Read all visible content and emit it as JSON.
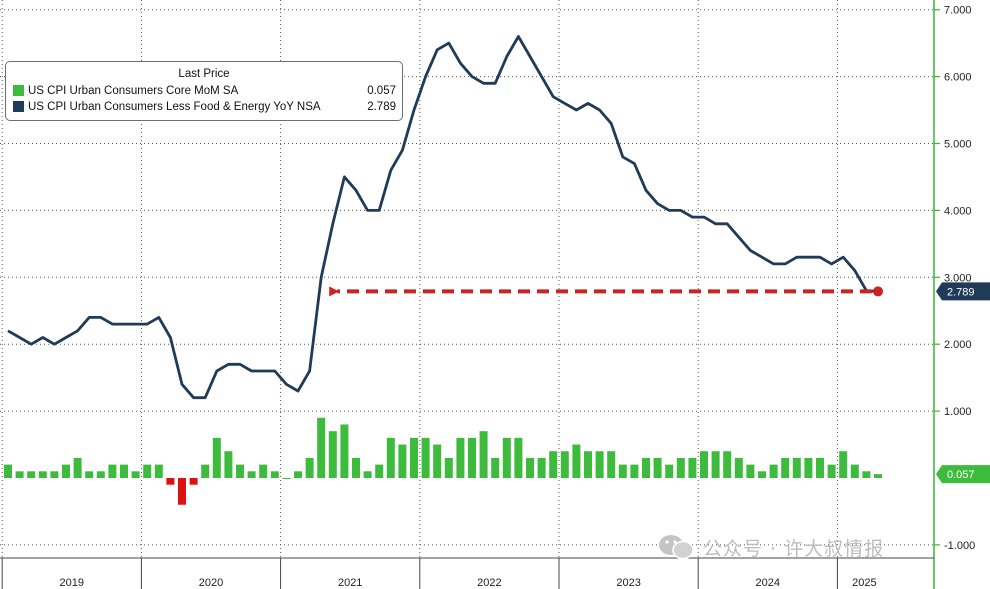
{
  "colors": {
    "core_mom": "#3dbb3d",
    "core_yoy": "#1f3b57",
    "arrow": "#cc2222",
    "grid_axis": "#35b935",
    "negative_bar": "#dd1111"
  },
  "legend": {
    "title": "Last Price",
    "items": [
      {
        "name": "US CPI Urban Consumers Core MoM SA",
        "value": "0.057",
        "color": "#3dbb3d"
      },
      {
        "name": "US CPI Urban Consumers Less Food & Energy YoY NSA",
        "value": "2.789",
        "color": "#1f3b57"
      }
    ]
  },
  "chart_data": {
    "type": "line",
    "xlabel": "",
    "ylabel": "",
    "ylim": [
      -1.0,
      7.0
    ],
    "y_ticks": [
      "-1.000",
      "1.000",
      "2.000",
      "3.000",
      "4.000",
      "5.000",
      "6.000",
      "7.000"
    ],
    "x_labels": [
      "2019",
      "2020",
      "2021",
      "2022",
      "2023",
      "2024",
      "2025"
    ],
    "grid": true,
    "legend_position": "top-left",
    "months": [
      "2019-01",
      "2019-02",
      "2019-03",
      "2019-04",
      "2019-05",
      "2019-06",
      "2019-07",
      "2019-08",
      "2019-09",
      "2019-10",
      "2019-11",
      "2019-12",
      "2020-01",
      "2020-02",
      "2020-03",
      "2020-04",
      "2020-05",
      "2020-06",
      "2020-07",
      "2020-08",
      "2020-09",
      "2020-10",
      "2020-11",
      "2020-12",
      "2021-01",
      "2021-02",
      "2021-03",
      "2021-04",
      "2021-05",
      "2021-06",
      "2021-07",
      "2021-08",
      "2021-09",
      "2021-10",
      "2021-11",
      "2021-12",
      "2022-01",
      "2022-02",
      "2022-03",
      "2022-04",
      "2022-05",
      "2022-06",
      "2022-07",
      "2022-08",
      "2022-09",
      "2022-10",
      "2022-11",
      "2022-12",
      "2023-01",
      "2023-02",
      "2023-03",
      "2023-04",
      "2023-05",
      "2023-06",
      "2023-07",
      "2023-08",
      "2023-09",
      "2023-10",
      "2023-11",
      "2023-12",
      "2024-01",
      "2024-02",
      "2024-03",
      "2024-04",
      "2024-05",
      "2024-06",
      "2024-07",
      "2024-08",
      "2024-09",
      "2024-10",
      "2024-11",
      "2024-12",
      "2025-01",
      "2025-02",
      "2025-03",
      "2025-04"
    ],
    "series": [
      {
        "name": "US CPI Urban Consumers Less Food & Energy YoY NSA",
        "values": [
          2.2,
          2.1,
          2.0,
          2.1,
          2.0,
          2.1,
          2.2,
          2.4,
          2.4,
          2.3,
          2.3,
          2.3,
          2.3,
          2.4,
          2.1,
          1.4,
          1.2,
          1.2,
          1.6,
          1.7,
          1.7,
          1.6,
          1.6,
          1.6,
          1.4,
          1.3,
          1.6,
          3.0,
          3.8,
          4.5,
          4.3,
          4.0,
          4.0,
          4.6,
          4.9,
          5.5,
          6.0,
          6.4,
          6.5,
          6.2,
          6.0,
          5.9,
          5.9,
          6.3,
          6.6,
          6.3,
          6.0,
          5.7,
          5.6,
          5.5,
          5.6,
          5.5,
          5.3,
          4.8,
          4.7,
          4.3,
          4.1,
          4.0,
          4.0,
          3.9,
          3.9,
          3.8,
          3.8,
          3.6,
          3.4,
          3.3,
          3.2,
          3.2,
          3.3,
          3.3,
          3.3,
          3.2,
          3.3,
          3.1,
          2.8,
          2.789
        ]
      },
      {
        "name": "US CPI Urban Consumers Core MoM SA",
        "values": [
          0.2,
          0.1,
          0.1,
          0.1,
          0.1,
          0.2,
          0.3,
          0.1,
          0.1,
          0.2,
          0.2,
          0.1,
          0.2,
          0.2,
          -0.1,
          -0.4,
          -0.1,
          0.2,
          0.6,
          0.4,
          0.2,
          0.1,
          0.2,
          0.1,
          0.0,
          0.1,
          0.3,
          0.9,
          0.7,
          0.8,
          0.3,
          0.1,
          0.2,
          0.6,
          0.5,
          0.6,
          0.6,
          0.5,
          0.3,
          0.6,
          0.6,
          0.7,
          0.3,
          0.6,
          0.6,
          0.3,
          0.3,
          0.4,
          0.4,
          0.5,
          0.4,
          0.4,
          0.4,
          0.2,
          0.2,
          0.3,
          0.3,
          0.2,
          0.3,
          0.3,
          0.4,
          0.4,
          0.4,
          0.3,
          0.2,
          0.1,
          0.2,
          0.3,
          0.3,
          0.3,
          0.3,
          0.2,
          0.4,
          0.2,
          0.1,
          0.057
        ]
      }
    ],
    "last_value_label": "2.789",
    "last_bar_label": "0.057",
    "annotation": "dashed red arrow from latest core YoY reading back to the same level in early 2021"
  },
  "watermark": {
    "text": "公众号 · 许大叔情报",
    "icon": "wechat-icon"
  }
}
